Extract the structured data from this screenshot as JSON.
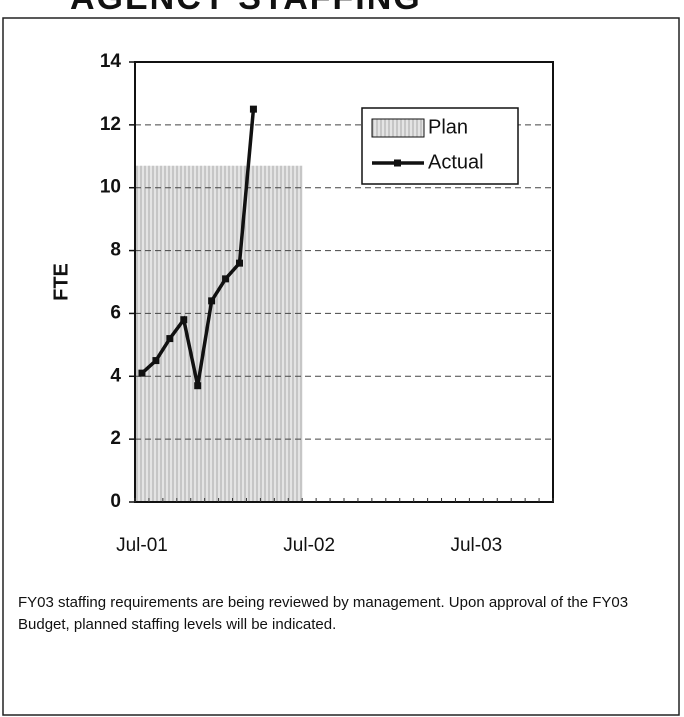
{
  "chart_data": {
    "type": "bar-line",
    "title": "AGENCY STAFFING",
    "y_label": "FTE",
    "categories": [
      "Jul-01",
      null,
      null,
      null,
      null,
      null,
      null,
      null,
      null,
      null,
      null,
      null,
      "Jul-02",
      null,
      null,
      null,
      null,
      null,
      null,
      null,
      null,
      null,
      null,
      null,
      "Jul-03",
      null,
      null,
      null,
      null,
      null
    ],
    "series": [
      {
        "name": "Plan",
        "kind": "bar",
        "color": "#d4d4d4",
        "values": [
          10.7,
          10.7,
          10.7,
          10.7,
          10.7,
          10.7,
          10.7,
          10.7,
          10.7,
          10.7,
          10.7,
          10.7,
          null,
          null,
          null,
          null,
          null,
          null,
          null,
          null,
          null,
          null,
          null,
          null,
          null,
          null,
          null,
          null,
          null,
          null
        ]
      },
      {
        "name": "Actual",
        "kind": "line",
        "color": "#111111",
        "values": [
          4.1,
          4.5,
          5.2,
          5.8,
          3.7,
          6.4,
          7.1,
          7.6,
          12.5,
          null,
          null,
          null,
          null,
          null,
          null,
          null,
          null,
          null,
          null,
          null,
          null,
          null,
          null,
          null,
          null,
          null,
          null,
          null,
          null,
          null
        ]
      }
    ],
    "ylim": [
      0,
      14
    ],
    "yticks": [
      0,
      2,
      4,
      6,
      8,
      10,
      12,
      14
    ],
    "grid": true,
    "legend": "top-right",
    "note": "FY03 staffing requirements are being reviewed by management. Upon approval of the FY03 Budget, planned staffing levels will be indicated."
  }
}
